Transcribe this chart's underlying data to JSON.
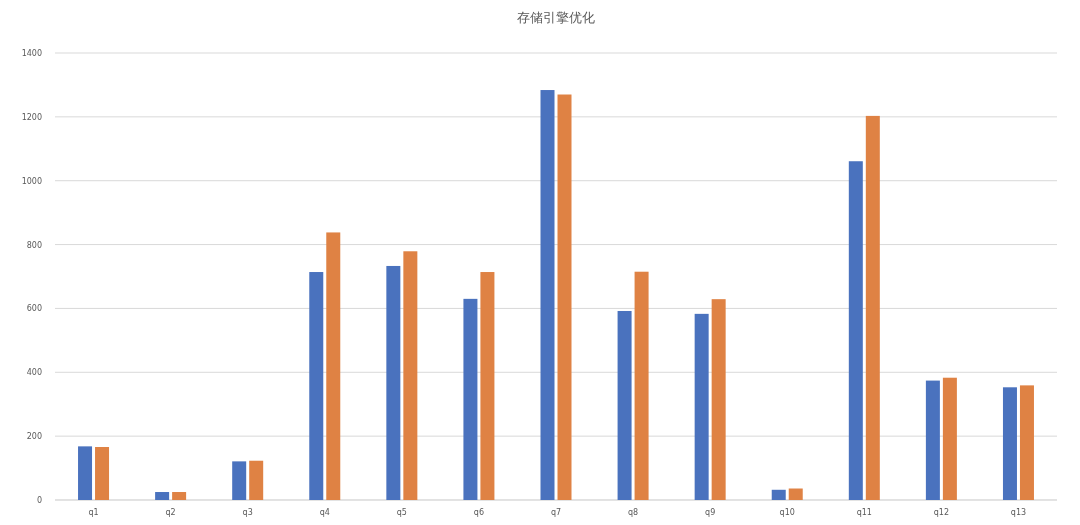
{
  "chart_data": {
    "type": "bar",
    "title": "存储引擎优化",
    "categories": [
      "q1",
      "q2",
      "q3",
      "q4",
      "q5",
      "q6",
      "q7",
      "q8",
      "q9",
      "q10",
      "q11",
      "q12",
      "q13"
    ],
    "series": [
      {
        "color": "#4a72be",
        "values": [
          168,
          25,
          121,
          714,
          733,
          630,
          1284,
          592,
          583,
          32,
          1061,
          374,
          353
        ]
      },
      {
        "color": "#df8244",
        "values": [
          166,
          25,
          123,
          838,
          779,
          714,
          1270,
          715,
          629,
          36,
          1203,
          383,
          359
        ]
      }
    ],
    "ylim": [
      0,
      1400
    ],
    "yticks": [
      0,
      200,
      400,
      600,
      800,
      1000,
      1200,
      1400
    ],
    "grid": "y"
  }
}
